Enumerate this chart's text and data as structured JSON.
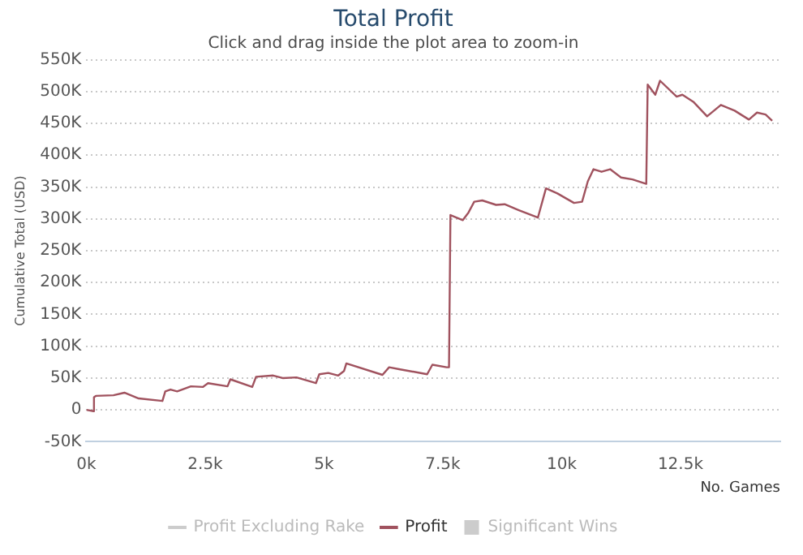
{
  "chart_data": {
    "type": "line",
    "title": "Total Profit",
    "subtitle": "Click and drag inside the plot area to zoom-in",
    "xlabel": "No. Games",
    "ylabel": "Cumulative Total (USD)",
    "xlim": [
      0,
      14600
    ],
    "xticks": [
      {
        "value": 0,
        "label": "0k"
      },
      {
        "value": 2500,
        "label": "2.5k"
      },
      {
        "value": 5000,
        "label": "5k"
      },
      {
        "value": 7500,
        "label": "7.5k"
      },
      {
        "value": 10000,
        "label": "10k"
      },
      {
        "value": 12500,
        "label": "12.5k"
      }
    ],
    "ylim": [
      -50000,
      550000
    ],
    "yticks": [
      {
        "value": -50000,
        "label": "-50K"
      },
      0,
      {
        "value": 50000,
        "label": "50K"
      },
      {
        "value": 100000,
        "label": "100K"
      },
      {
        "value": 150000,
        "label": "150K"
      },
      {
        "value": 200000,
        "label": "200K"
      },
      {
        "value": 250000,
        "label": "250K"
      },
      {
        "value": 300000,
        "label": "300K"
      },
      {
        "value": 350000,
        "label": "350K"
      },
      {
        "value": 400000,
        "label": "400K"
      },
      {
        "value": 450000,
        "label": "450K"
      },
      {
        "value": 500000,
        "label": "500K"
      },
      {
        "value": 550000,
        "label": "550K"
      }
    ],
    "grid": "y",
    "legend": "bottom",
    "marker": "none",
    "line_style": "solid",
    "series": [
      {
        "name": "Profit Excluding Rake",
        "type": "line",
        "color": "#cccccc"
      },
      {
        "name": "Profit",
        "color": "#a0525e",
        "x": [
          0,
          150,
          160,
          200,
          570,
          800,
          1100,
          1600,
          1660,
          1770,
          1910,
          2200,
          2450,
          2560,
          2970,
          3030,
          3490,
          3570,
          3930,
          4130,
          4420,
          4830,
          4900,
          5090,
          5300,
          5420,
          5470,
          6230,
          6370,
          6580,
          7170,
          7280,
          7580,
          7630,
          7660,
          7920,
          8040,
          8160,
          8330,
          8620,
          8800,
          9090,
          9500,
          9670,
          9910,
          10260,
          10430,
          10550,
          10670,
          10840,
          11020,
          11250,
          11490,
          11780,
          11810,
          11970,
          12070,
          12420,
          12540,
          12770,
          13060,
          13350,
          13640,
          13940,
          14110,
          14290,
          14430
        ],
        "values": [
          0,
          -2000,
          20000,
          22000,
          23000,
          27000,
          18000,
          14000,
          29000,
          32000,
          29000,
          37000,
          36000,
          42000,
          37000,
          48000,
          36000,
          52000,
          54000,
          50000,
          51000,
          42000,
          56000,
          58000,
          54000,
          61000,
          73000,
          55000,
          67000,
          64000,
          56000,
          71000,
          67000,
          67000,
          306000,
          298000,
          310000,
          327000,
          329000,
          322000,
          323000,
          314000,
          302000,
          348000,
          340000,
          325000,
          327000,
          359000,
          378000,
          374000,
          378000,
          365000,
          362000,
          355000,
          511000,
          495000,
          517000,
          492000,
          495000,
          484000,
          461000,
          479000,
          470000,
          456000,
          467000,
          464000,
          454000
        ]
      },
      {
        "name": "Significant Wins",
        "type": "bar",
        "color": "#cccccc"
      }
    ]
  }
}
